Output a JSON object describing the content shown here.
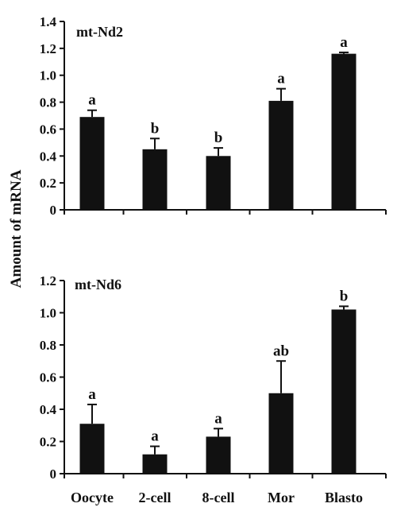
{
  "ylabel": "Amount of mRNA",
  "chart_data": [
    {
      "type": "bar",
      "title": "mt-Nd2",
      "categories": [
        "Oocyte",
        "2-cell",
        "8-cell",
        "Mor",
        "Blasto"
      ],
      "values": [
        0.69,
        0.45,
        0.4,
        0.81,
        1.16
      ],
      "error": [
        0.05,
        0.08,
        0.06,
        0.09,
        0.01
      ],
      "labels": [
        "a",
        "b",
        "b",
        "a",
        "a"
      ],
      "ylim": [
        0,
        1.4
      ],
      "yticks": [
        "0",
        "0.2",
        "0.4",
        "0.6",
        "0.8",
        "1.0",
        "1.2",
        "1.4"
      ],
      "bar_color": "#111111"
    },
    {
      "type": "bar",
      "title": "mt-Nd6",
      "categories": [
        "Oocyte",
        "2-cell",
        "8-cell",
        "Mor",
        "Blasto"
      ],
      "values": [
        0.31,
        0.12,
        0.23,
        0.5,
        1.02
      ],
      "error": [
        0.12,
        0.05,
        0.05,
        0.2,
        0.02
      ],
      "labels": [
        "a",
        "a",
        "a",
        "ab",
        "b"
      ],
      "ylim": [
        0,
        1.2
      ],
      "yticks": [
        "0",
        "0.2",
        "0.4",
        "0.6",
        "0.8",
        "1.0",
        "1.2"
      ],
      "bar_color": "#111111"
    }
  ]
}
